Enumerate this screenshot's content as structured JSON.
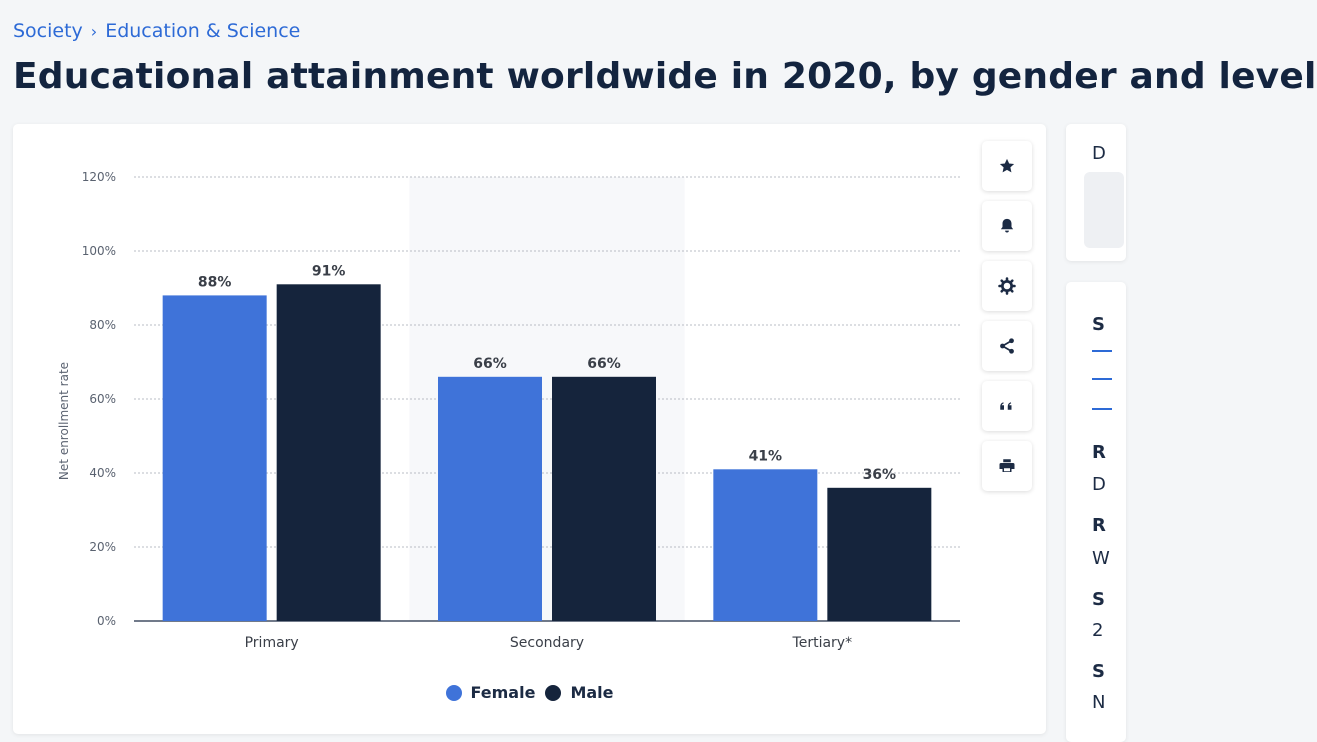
{
  "breadcrumb": {
    "items": [
      "Society",
      "Education & Science"
    ],
    "separator": "›"
  },
  "page_title": "Educational attainment worldwide in 2020, by gender and level",
  "colors": {
    "female": "#3f73d9",
    "male": "#15243c",
    "accent": "#2d6ad6"
  },
  "toolbar": {
    "icons": [
      "star-icon",
      "bell-icon",
      "gear-icon",
      "share-icon",
      "quote-icon",
      "print-icon"
    ]
  },
  "chart_data": {
    "type": "bar",
    "categories": [
      "Primary",
      "Secondary",
      "Tertiary*"
    ],
    "series": [
      {
        "name": "Female",
        "values": [
          88,
          66,
          41
        ],
        "labels": [
          "88%",
          "66%",
          "41%"
        ],
        "color": "#3f73d9"
      },
      {
        "name": "Male",
        "values": [
          91,
          66,
          36
        ],
        "labels": [
          "91%",
          "66%",
          "36%"
        ],
        "color": "#15243c"
      }
    ],
    "ylabel": "Net enrollment rate",
    "ylim": [
      0,
      120
    ],
    "yticks": [
      0,
      20,
      40,
      60,
      80,
      100,
      120
    ],
    "ytick_labels": [
      "0%",
      "20%",
      "40%",
      "60%",
      "80%",
      "100%",
      "120%"
    ],
    "grid": true,
    "legend": "bottom-center",
    "highlighted_category": "Secondary"
  },
  "side_panel": {
    "top_letter": "D",
    "items": [
      {
        "letter": "S",
        "bold": true
      },
      {
        "letter": "R",
        "bold": true
      },
      {
        "letter": "D",
        "bold": false
      },
      {
        "letter": "R",
        "bold": true
      },
      {
        "letter": "W",
        "bold": false
      },
      {
        "letter": "S",
        "bold": true
      },
      {
        "letter": "2",
        "bold": false
      },
      {
        "letter": "S",
        "bold": true
      },
      {
        "letter": "N",
        "bold": false
      }
    ]
  }
}
